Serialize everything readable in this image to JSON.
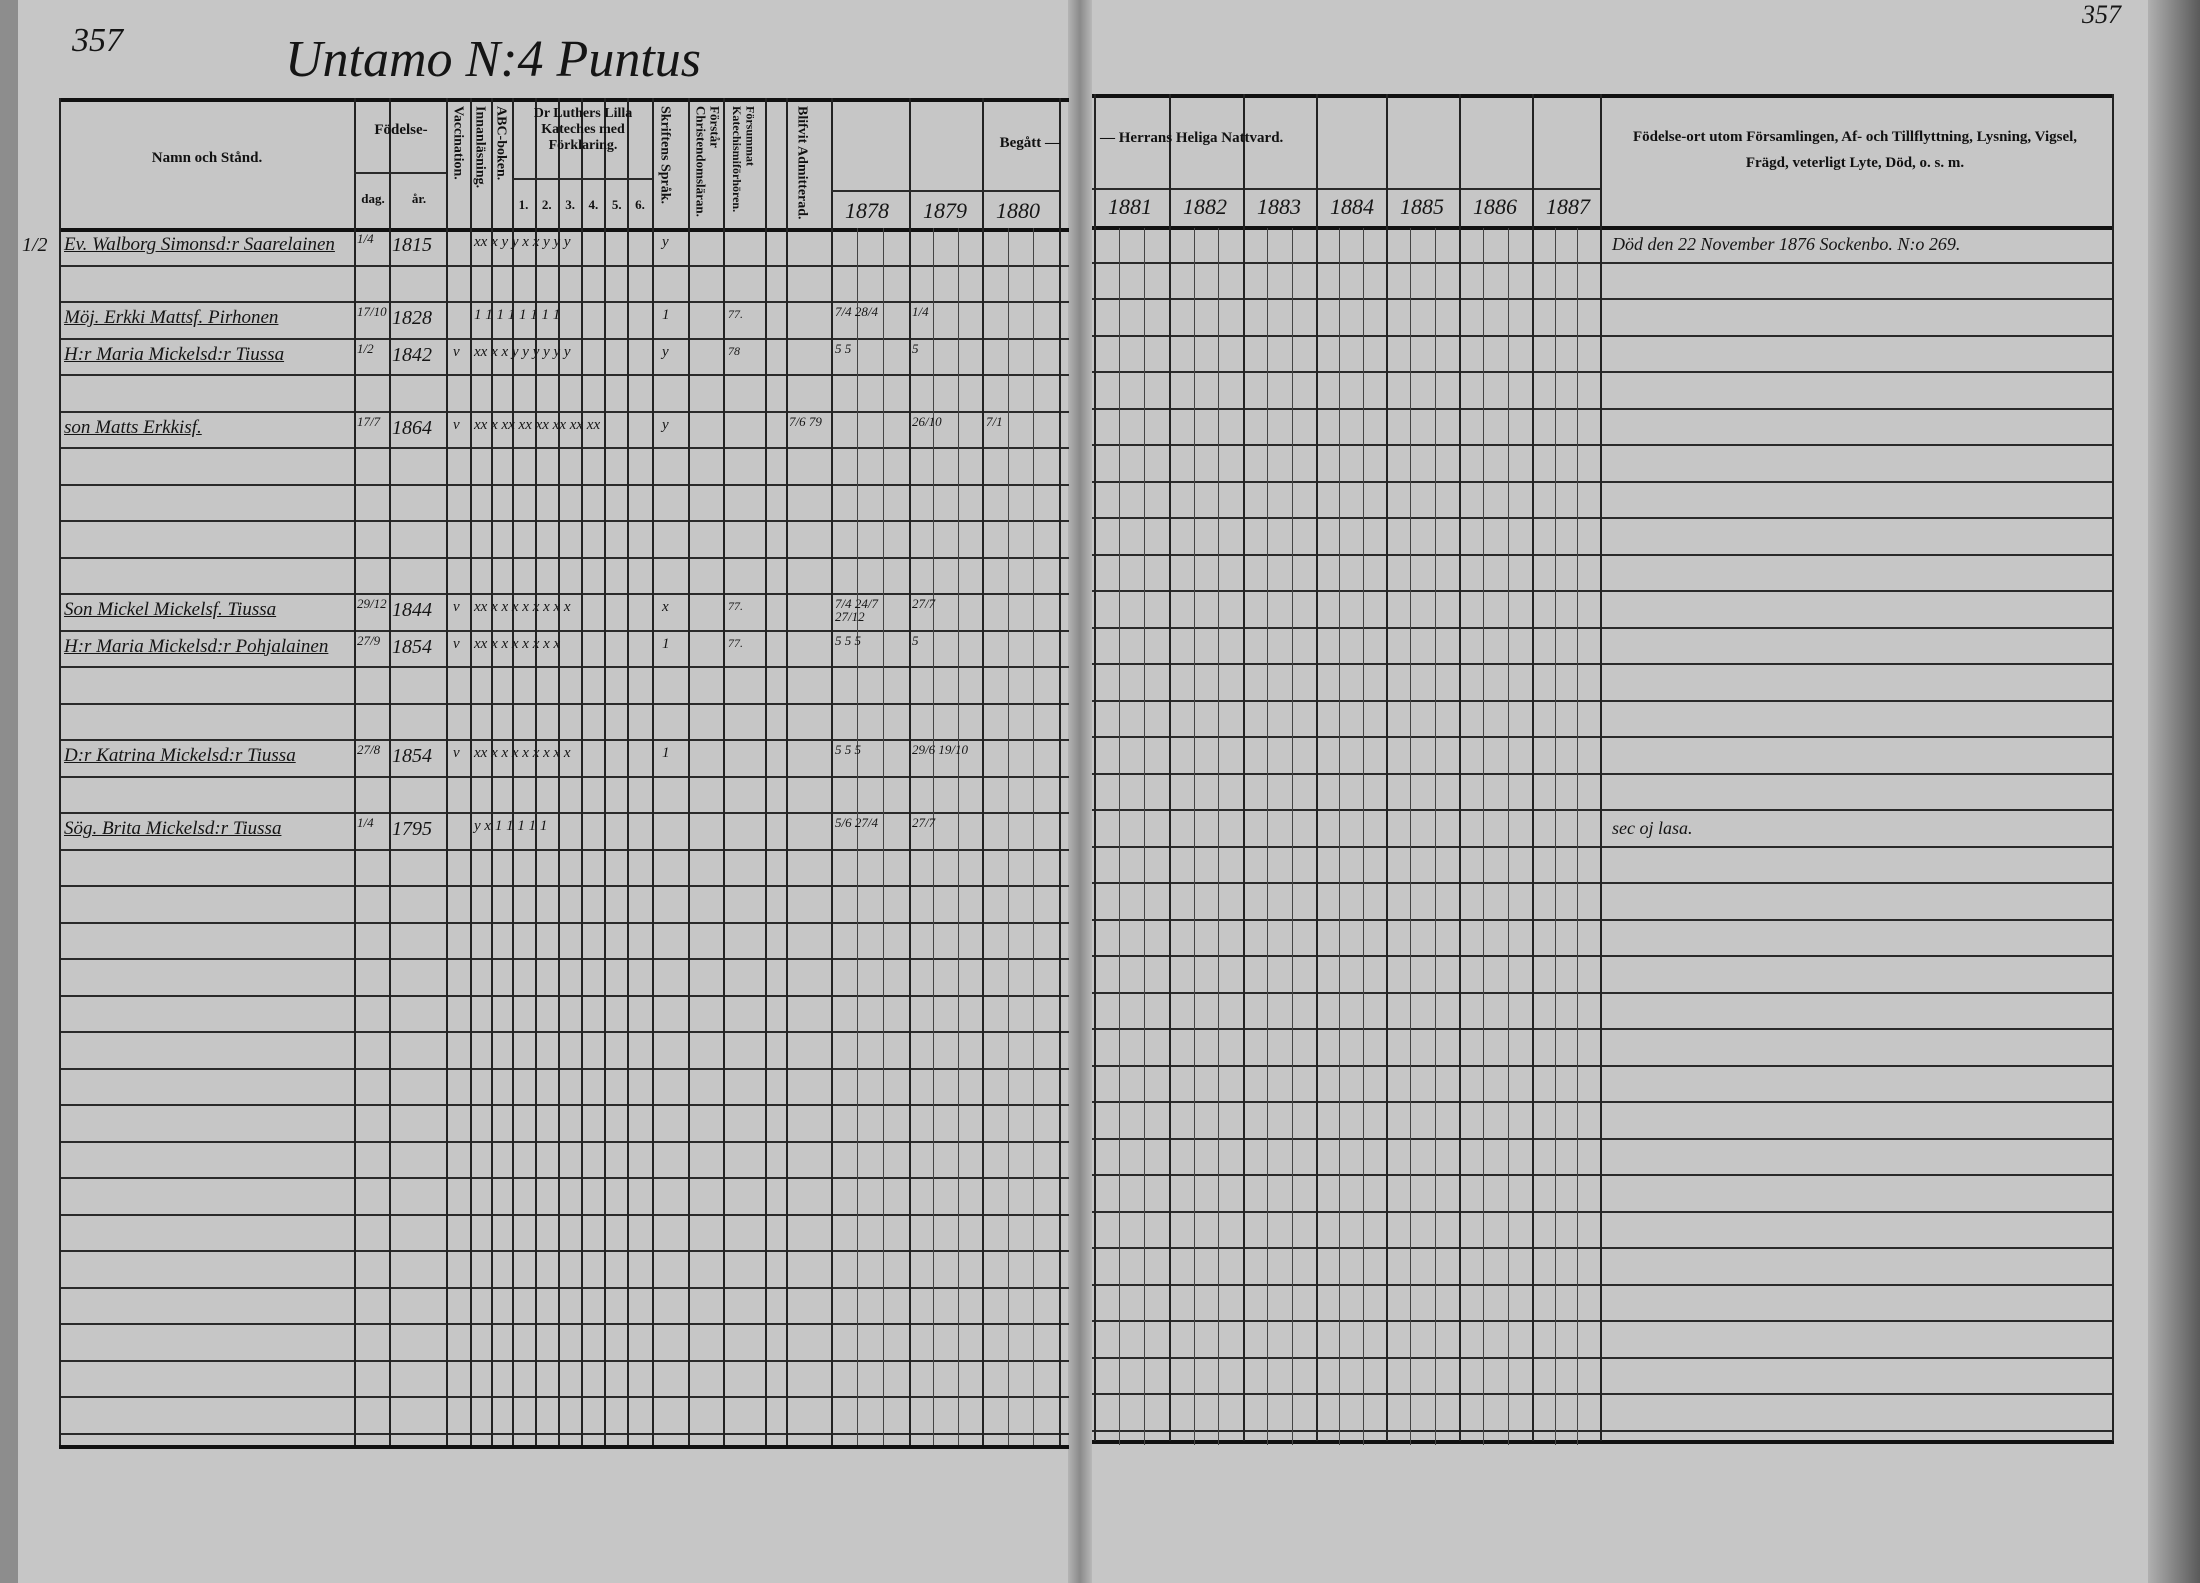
{
  "header": {
    "page_number_left": "357",
    "title": "Untamo N:4 Puntus",
    "page_number_right": "357"
  },
  "columns": {
    "name": "Namn och Stånd.",
    "birth": "Födelse-",
    "birth_day": "dag.",
    "birth_year": "år.",
    "vaccination": "Vaccination.",
    "reading": "Innanläsning.",
    "abc": "ABC-boken.",
    "catechism": "Dr Luthers Lilla Kateches med Förklaring.",
    "catechism_parts": [
      "1.",
      "2.",
      "3.",
      "4.",
      "5.",
      "6."
    ],
    "scripture": "Skriftens Språk.",
    "understands": "Förstår Christendomsläran.",
    "missed": "Försummat Katechismiförhören.",
    "admitted": "Blifvit Admitterad.",
    "communion_left": "Begått —",
    "communion_right": "— Herrans Heliga Nattvard.",
    "years": [
      "1878",
      "1879",
      "1880",
      "1881",
      "1882",
      "1883",
      "1884",
      "1885",
      "1886",
      "1887"
    ],
    "notes": "Födelse-ort utom Församlingen, Af- och Tillflyttning, Lysning, Vigsel, Frägd, veterligt Lyte, Död, o. s. m."
  },
  "entries": [
    {
      "margin": "1/2",
      "name": "Ev. Walborg Simonsd:r Saarelainen",
      "day": "1/4",
      "year": "1815",
      "vacc": "",
      "marks": "xx x y y x x y y y",
      "scripture": "y",
      "missed": "",
      "admitted": "",
      "communion": [
        "",
        "",
        ""
      ],
      "note": "Död den 22 November 1876 Sockenbo. N:o 269."
    },
    {
      "margin": "",
      "name": "Möj. Erkki Mattsf. Pirhonen",
      "day": "17/10",
      "year": "1828",
      "vacc": "",
      "marks": "1 1 1 1 1 1 1 1",
      "scripture": "1",
      "missed": "77.",
      "admitted": "",
      "communion": [
        "7/4  28/4",
        "1/4",
        ""
      ],
      "note": ""
    },
    {
      "margin": "",
      "name": "H:r Maria Mickelsd:r Tiussa",
      "day": "1/2",
      "year": "1842",
      "vacc": "v",
      "marks": "xx x x y y y y y y",
      "scripture": "y",
      "missed": "78",
      "admitted": "",
      "communion": [
        "5  5",
        "5",
        ""
      ],
      "note": ""
    },
    {
      "margin": "",
      "name": "son Matts Erkkisf.",
      "day": "17/7",
      "year": "1864",
      "vacc": "v",
      "marks": "xx x xx xx xx xx xx xx",
      "scripture": "y",
      "missed": "",
      "admitted": "7/6 79",
      "communion": [
        "",
        "26/10",
        "7/1"
      ],
      "note": ""
    },
    {
      "margin": "",
      "name": "Son Mickel Mickelsf. Tiussa",
      "day": "29/12",
      "year": "1844",
      "vacc": "v",
      "marks": "xx x x x x x x x x",
      "scripture": "x",
      "missed": "77.",
      "admitted": "",
      "communion": [
        "7/4  24/7  27/12",
        "27/7",
        ""
      ],
      "note": ""
    },
    {
      "margin": "",
      "name": "H:r Maria Mickelsd:r Pohjalainen",
      "day": "27/9",
      "year": "1854",
      "vacc": "v",
      "marks": "xx x x x x x x x",
      "scripture": "1",
      "missed": "77.",
      "admitted": "",
      "communion": [
        "5  5  5",
        "5",
        ""
      ],
      "note": ""
    },
    {
      "margin": "",
      "name": "D:r Katrina Mickelsd:r Tiussa",
      "day": "27/8",
      "year": "1854",
      "vacc": "v",
      "marks": "xx x x x x x x x x",
      "scripture": "1",
      "missed": "",
      "admitted": "",
      "communion": [
        "5  5  5",
        "29/6  19/10",
        ""
      ],
      "note": ""
    },
    {
      "margin": "",
      "name": "Sög. Brita Mickelsd:r Tiussa",
      "day": "1/4",
      "year": "1795",
      "vacc": "",
      "marks": "y x 1 1 1 1 1",
      "scripture": "",
      "missed": "",
      "admitted": "",
      "communion": [
        "5/6  27/4",
        "27/7",
        ""
      ],
      "note": "sec oj lasa."
    }
  ]
}
